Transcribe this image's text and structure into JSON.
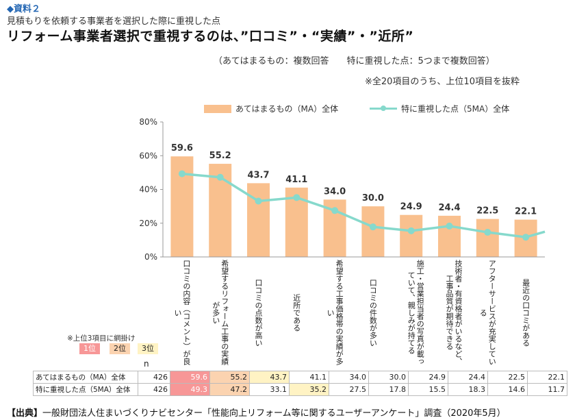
{
  "header": {
    "tag": "◆資料２",
    "subtitle": "見積もりを依頼する事業者を選択した際に重視した点",
    "title": "リフォーム事業者選択で重視するのは、”口コミ”・“実績”・”近所”",
    "note_answers": "（あてはまるもの：複数回答　　特に重視した点：5つまで複数回答）",
    "note_extract": "※全20項目のうち、上位10項目を抜粋"
  },
  "legend": {
    "bar": "あてはまるもの（MA）全体",
    "line": "特に重視した点（5MA）全体"
  },
  "colors": {
    "bar": "#f9c08e",
    "line": "#86d9cc",
    "rank1": "#f79797",
    "rank2": "#fbd3b0",
    "rank3": "#fff3c4"
  },
  "chart_data": {
    "type": "bar",
    "categories": [
      "口コミの内容（コメント）が良い",
      "希望するリフォーム工事の実績が多い",
      "口コミの点数が高い",
      "近所である",
      "希望する工事価格帯の実績が多い",
      "口コミの件数が多い",
      "施工・営業担当者の写真が載っていて、親しみが持てる",
      "技術者・有資格者がいるなど、工事品質が期待できる",
      "アフターサービスが充実している",
      "最近の口コミがある"
    ],
    "series": [
      {
        "name": "あてはまるもの（MA）全体",
        "type": "bar",
        "values": [
          59.6,
          55.2,
          43.7,
          41.1,
          34.0,
          30.0,
          24.9,
          24.4,
          22.5,
          22.1
        ]
      },
      {
        "name": "特に重視した点（5MA）全体",
        "type": "line",
        "values": [
          49.3,
          47.2,
          33.1,
          35.2,
          27.5,
          17.8,
          15.5,
          18.3,
          14.6,
          11.7
        ]
      }
    ],
    "bar_labels": [
      "59.6",
      "55.2",
      "43.7",
      "41.1",
      "34.0",
      "30.0",
      "24.9",
      "24.4",
      "22.5",
      "22.1"
    ],
    "ylim": [
      0,
      80
    ],
    "yticks": [
      "0%",
      "20%",
      "40%",
      "60%",
      "80%"
    ],
    "grid": false,
    "legend_position": "top"
  },
  "table": {
    "n_header": "n",
    "rows": [
      {
        "label": "あてはまるもの（MA）全体",
        "n": "426",
        "values": [
          "59.6",
          "55.2",
          "43.7",
          "41.1",
          "34.0",
          "30.0",
          "24.9",
          "24.4",
          "22.5",
          "22.1"
        ],
        "ranks": [
          1,
          2,
          3,
          0,
          0,
          0,
          0,
          0,
          0,
          0
        ]
      },
      {
        "label": "特に重視した点（5MA）全体",
        "n": "426",
        "values": [
          "49.3",
          "47.2",
          "33.1",
          "35.2",
          "27.5",
          "17.8",
          "15.5",
          "18.3",
          "14.6",
          "11.7"
        ],
        "ranks": [
          1,
          2,
          0,
          3,
          0,
          0,
          0,
          0,
          0,
          0
        ]
      }
    ]
  },
  "rank_legend": {
    "note": "※上位3項目に網掛け",
    "labels": [
      "1位",
      "2位",
      "3位"
    ]
  },
  "source": {
    "prefix": "【出典】",
    "text": "一般財団法人住まいづくりナビセンター「性能向上リフォーム等に関するユーザーアンケート」調査（2020年5月）"
  }
}
